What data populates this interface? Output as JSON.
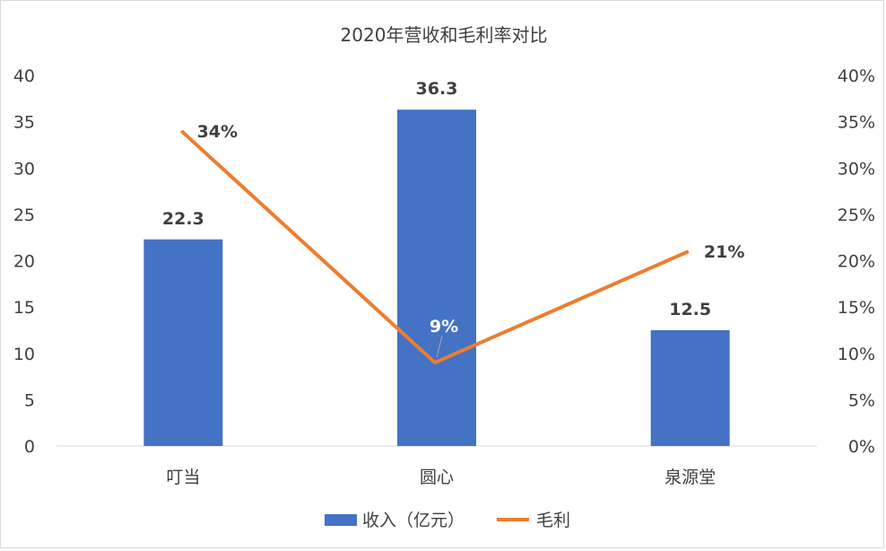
{
  "chart_data": {
    "type": "bar",
    "title": "2020年营收和毛利率对比",
    "categories": [
      "叮当",
      "圆心",
      "泉源堂"
    ],
    "series": [
      {
        "name": "收入（亿元）",
        "type": "bar",
        "axis": "left",
        "values": [
          22.3,
          36.3,
          12.5
        ],
        "data_labels": [
          "22.3",
          "36.3",
          "12.5"
        ],
        "color": "#4472C4"
      },
      {
        "name": "毛利",
        "type": "line",
        "axis": "right",
        "values": [
          0.34,
          0.09,
          0.21
        ],
        "data_labels": [
          "34%",
          "9%",
          "21%"
        ],
        "color": "#ED7D31"
      }
    ],
    "y_left": {
      "ylim": [
        0,
        40
      ],
      "ticks": [
        "0",
        "5",
        "10",
        "15",
        "20",
        "25",
        "30",
        "35",
        "40"
      ]
    },
    "y_right": {
      "ylim": [
        0,
        0.4
      ],
      "ticks": [
        "0%",
        "5%",
        "10%",
        "15%",
        "20%",
        "25%",
        "30%",
        "35%",
        "40%"
      ]
    },
    "grid": false,
    "legend_position": "bottom"
  }
}
